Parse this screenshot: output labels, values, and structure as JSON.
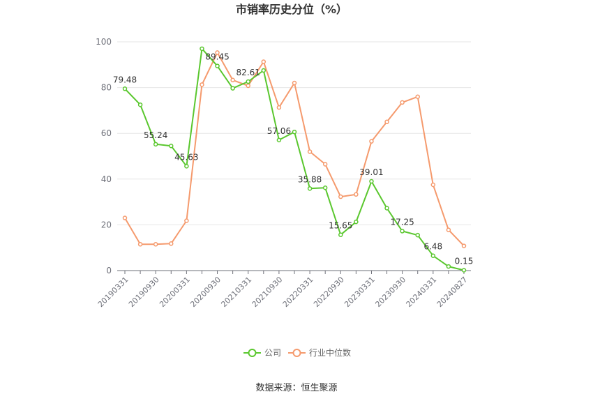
{
  "chart_data": {
    "type": "line",
    "title": "市销率历史分位（%）",
    "x": [
      "20190331",
      "20190630",
      "20190930",
      "20191231",
      "20200331",
      "20200630",
      "20200930",
      "20201231",
      "20210331",
      "20210630",
      "20210930",
      "20211231",
      "20220331",
      "20220630",
      "20220930",
      "20221231",
      "20230331",
      "20230630",
      "20230930",
      "20231231",
      "20240331",
      "20240630",
      "20240827"
    ],
    "x_tick_labels": [
      "20190331",
      "20190930",
      "20200331",
      "20200930",
      "20210331",
      "20210930",
      "20220331",
      "20220930",
      "20230331",
      "20230930",
      "20240331",
      "20240827"
    ],
    "ylim": [
      0,
      100
    ],
    "y_ticks": [
      0,
      20,
      40,
      60,
      80,
      100
    ],
    "grid": true,
    "legend_position": "bottom",
    "series": [
      {
        "name": "公司",
        "color": "#5ac72e",
        "values": [
          79.48,
          72.5,
          55.24,
          54.5,
          45.63,
          97.0,
          89.45,
          79.7,
          82.61,
          87.5,
          57.06,
          60.6,
          35.88,
          36.2,
          15.65,
          21.3,
          39.01,
          27.3,
          17.25,
          15.5,
          6.48,
          1.8,
          0.15
        ],
        "data_labels": [
          {
            "index": 0,
            "text": "79.48"
          },
          {
            "index": 2,
            "text": "55.24"
          },
          {
            "index": 4,
            "text": "45.63"
          },
          {
            "index": 6,
            "text": "89.45"
          },
          {
            "index": 8,
            "text": "82.61"
          },
          {
            "index": 10,
            "text": "57.06"
          },
          {
            "index": 12,
            "text": "35.88"
          },
          {
            "index": 14,
            "text": "15.65"
          },
          {
            "index": 16,
            "text": "39.01"
          },
          {
            "index": 18,
            "text": "17.25"
          },
          {
            "index": 20,
            "text": "6.48"
          },
          {
            "index": 22,
            "text": "0.15"
          }
        ]
      },
      {
        "name": "行业中位数",
        "color": "#f59a6d",
        "values": [
          23.0,
          11.5,
          11.5,
          11.8,
          21.8,
          81.3,
          95.3,
          83.3,
          80.8,
          91.3,
          71.3,
          82.0,
          52.0,
          46.5,
          32.3,
          33.3,
          56.5,
          65.0,
          73.5,
          76.0,
          37.5,
          17.8,
          10.8
        ]
      }
    ]
  },
  "source": "数据来源：恒生聚源"
}
